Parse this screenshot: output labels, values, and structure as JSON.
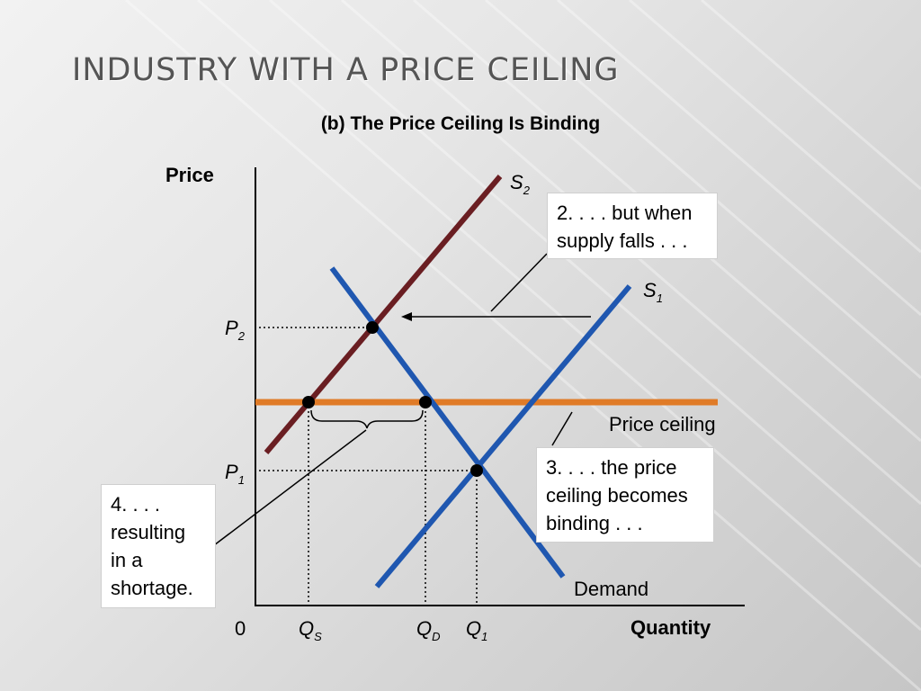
{
  "slide": {
    "title": "INDUSTRY WITH A PRICE CEILING",
    "subtitle": "(b) The Price Ceiling Is Binding"
  },
  "diagram": {
    "axes": {
      "y_label": "Price",
      "x_label": "Quantity",
      "origin": "0",
      "p2": {
        "base": "P",
        "sub": "2"
      },
      "p1": {
        "base": "P",
        "sub": "1"
      },
      "qs": {
        "base": "Q",
        "sub": "S"
      },
      "qd": {
        "base": "Q",
        "sub": "D"
      },
      "q1": {
        "base": "Q",
        "sub": "1"
      }
    },
    "curves": {
      "s2": {
        "base": "S",
        "sub": "2"
      },
      "s1": {
        "base": "S",
        "sub": "1"
      },
      "demand": "Demand",
      "price_ceiling": "Price ceiling"
    },
    "callouts": {
      "c2": [
        "2. . . . but when",
        "supply falls . . ."
      ],
      "c3": [
        "3. . . . the price",
        "ceiling becomes",
        "binding . . ."
      ],
      "c4": [
        "4. . . .",
        "resulting",
        "in a",
        "shortage."
      ]
    },
    "colors": {
      "supply_s2": "#6a1e22",
      "supply_s1": "#1f57b0",
      "demand": "#1f57b0",
      "price_ceiling": "#e07b27",
      "axis": "#000000"
    }
  }
}
